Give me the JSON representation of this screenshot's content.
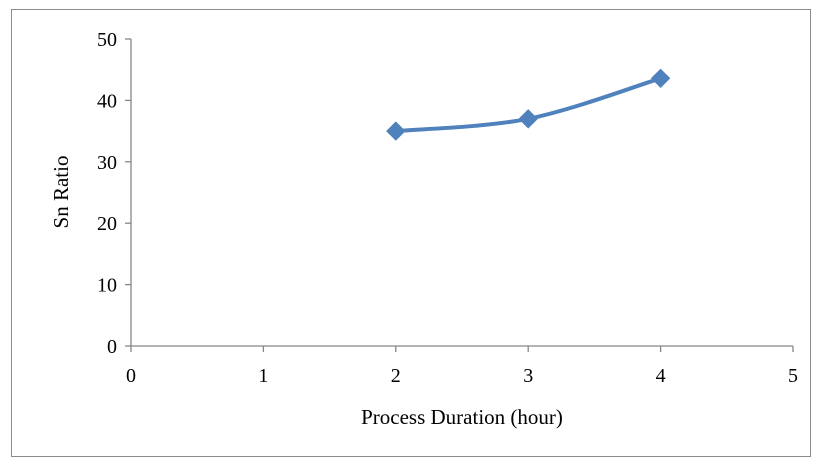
{
  "chart_data": {
    "type": "line",
    "title": "",
    "xlabel": "Process Duration (hour)",
    "ylabel": "Sn Ratio",
    "xlim": [
      0,
      5
    ],
    "ylim": [
      0,
      50
    ],
    "x_ticks": [
      "0",
      "1",
      "2",
      "3",
      "4",
      "5"
    ],
    "y_ticks": [
      "0",
      "10",
      "20",
      "30",
      "40",
      "50"
    ],
    "grid": false,
    "legend": "none",
    "series": [
      {
        "x": [
          2,
          3,
          4
        ],
        "y": [
          35.0,
          37.0,
          43.6
        ],
        "color": "#4f81bd",
        "marker": "diamond"
      }
    ]
  }
}
